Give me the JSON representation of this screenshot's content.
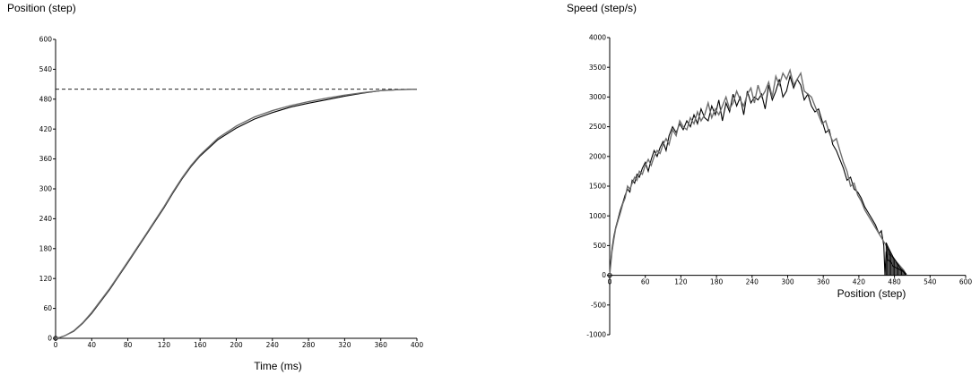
{
  "chart_data": [
    {
      "type": "line",
      "title": "",
      "ylabel": "Position (step)",
      "xlabel": "Time (ms)",
      "xlim": [
        0,
        400
      ],
      "ylim": [
        0,
        600
      ],
      "xticks": [
        "0",
        "40",
        "80",
        "120",
        "160",
        "200",
        "240",
        "280",
        "320",
        "360",
        "400"
      ],
      "yticks": [
        "0",
        "60",
        "120",
        "180",
        "240",
        "300",
        "360",
        "420",
        "480",
        "540",
        "600"
      ],
      "grid": false,
      "reference_line": {
        "y": 500,
        "style": "dashed",
        "x_range": [
          0,
          400
        ]
      },
      "series": [
        {
          "color": "#000000",
          "x": [
            0,
            5,
            10,
            20,
            30,
            40,
            60,
            80,
            100,
            120,
            130,
            140,
            150,
            160,
            180,
            200,
            220,
            240,
            260,
            280,
            300,
            320,
            340,
            360,
            380,
            400
          ],
          "y": [
            0,
            2,
            5,
            14,
            30,
            50,
            98,
            152,
            207,
            262,
            292,
            320,
            345,
            366,
            399,
            422,
            440,
            453,
            464,
            472,
            479,
            486,
            492,
            497,
            499,
            500
          ]
        },
        {
          "color": "#6e6e6e",
          "x": [
            0,
            5,
            10,
            20,
            30,
            40,
            60,
            80,
            100,
            120,
            130,
            140,
            150,
            160,
            180,
            200,
            220,
            240,
            260,
            280,
            300,
            320,
            340,
            360,
            380,
            400
          ],
          "y": [
            0,
            2,
            5,
            15,
            31,
            52,
            100,
            154,
            209,
            264,
            294,
            322,
            347,
            368,
            402,
            426,
            444,
            457,
            467,
            475,
            482,
            488,
            493,
            497,
            499,
            500
          ]
        }
      ]
    },
    {
      "type": "line",
      "title": "",
      "ylabel": "Speed (step/s)",
      "xlabel": "Position (step)",
      "xlim": [
        0,
        600
      ],
      "ylim": [
        -1000,
        4000
      ],
      "xticks": [
        "0",
        "60",
        "120",
        "180",
        "240",
        "300",
        "360",
        "420",
        "480",
        "540",
        "600"
      ],
      "yticks": [
        "-1000",
        "-500",
        "0",
        "500",
        "1000",
        "1500",
        "2000",
        "2500",
        "3000",
        "3500",
        "4000"
      ],
      "grid": false,
      "series": [
        {
          "color": "#000000",
          "x": [
            0,
            2,
            4,
            7,
            10,
            14,
            18,
            22,
            26,
            30,
            34,
            38,
            42,
            46,
            50,
            55,
            60,
            65,
            70,
            75,
            80,
            85,
            90,
            95,
            100,
            106,
            112,
            118,
            124,
            130,
            136,
            142,
            148,
            154,
            160,
            166,
            172,
            178,
            184,
            190,
            196,
            202,
            208,
            214,
            220,
            226,
            232,
            238,
            244,
            250,
            256,
            262,
            268,
            274,
            280,
            286,
            292,
            298,
            304,
            310,
            316,
            322,
            328,
            334,
            340,
            346,
            352,
            358,
            364,
            370,
            376,
            382,
            388,
            394,
            400,
            406,
            412,
            418,
            424,
            430,
            436,
            442,
            448,
            454,
            458,
            462,
            464,
            466,
            468,
            472,
            478,
            484,
            490,
            496,
            500
          ],
          "y": [
            0,
            250,
            450,
            650,
            800,
            950,
            1100,
            1220,
            1350,
            1450,
            1400,
            1600,
            1550,
            1700,
            1650,
            1800,
            1900,
            1750,
            1950,
            2100,
            2000,
            2150,
            2250,
            2100,
            2350,
            2500,
            2400,
            2550,
            2450,
            2600,
            2500,
            2700,
            2550,
            2800,
            2650,
            2600,
            2850,
            2700,
            2950,
            2600,
            2900,
            2750,
            3050,
            2850,
            3000,
            2700,
            3100,
            2900,
            3000,
            2950,
            3050,
            2800,
            3200,
            2950,
            3100,
            3300,
            3000,
            3100,
            3350,
            3150,
            3300,
            3200,
            2950,
            3050,
            2850,
            2750,
            2800,
            2600,
            2400,
            2450,
            2200,
            2100,
            1950,
            1800,
            1600,
            1650,
            1450,
            1400,
            1300,
            1150,
            1050,
            950,
            850,
            700,
            750,
            500,
            0,
            400,
            250,
            250,
            150,
            120,
            90,
            50,
            0
          ]
        },
        {
          "color": "#6e6e6e",
          "x": [
            0,
            2,
            4,
            7,
            10,
            14,
            18,
            22,
            26,
            30,
            34,
            38,
            42,
            46,
            50,
            55,
            60,
            65,
            70,
            75,
            80,
            85,
            90,
            95,
            100,
            106,
            112,
            118,
            124,
            130,
            136,
            142,
            148,
            154,
            160,
            166,
            172,
            178,
            184,
            190,
            196,
            202,
            208,
            214,
            220,
            226,
            232,
            238,
            244,
            250,
            256,
            262,
            268,
            274,
            280,
            286,
            292,
            298,
            304,
            310,
            316,
            322,
            328,
            334,
            340,
            346,
            352,
            358,
            364,
            370,
            376,
            382,
            388,
            394,
            400,
            406,
            412,
            418,
            424,
            430,
            436,
            442,
            448,
            454,
            460,
            466,
            472,
            478,
            484,
            490,
            496,
            500
          ],
          "y": [
            0,
            200,
            400,
            600,
            780,
            920,
            1050,
            1200,
            1300,
            1500,
            1450,
            1550,
            1650,
            1600,
            1750,
            1700,
            1850,
            1950,
            1850,
            2000,
            2100,
            2050,
            2200,
            2300,
            2200,
            2450,
            2350,
            2600,
            2500,
            2450,
            2650,
            2550,
            2750,
            2600,
            2700,
            2900,
            2650,
            2800,
            2700,
            2850,
            3000,
            2800,
            2900,
            3100,
            2950,
            2850,
            3050,
            3150,
            2900,
            3200,
            3000,
            3100,
            3250,
            3000,
            3350,
            3200,
            3400,
            3300,
            3450,
            3200,
            3300,
            3400,
            3100,
            3050,
            3000,
            2850,
            2700,
            2550,
            2600,
            2400,
            2250,
            2300,
            2100,
            1900,
            1750,
            1500,
            1550,
            1350,
            1250,
            1100,
            1000,
            900,
            800,
            700,
            600,
            500,
            350,
            300,
            220,
            150,
            80,
            0
          ]
        },
        {
          "color": "#000000",
          "x": [
            466,
            468,
            470,
            472,
            474,
            476,
            478,
            480,
            482,
            484,
            486,
            488,
            490,
            492,
            494,
            496,
            498,
            500
          ],
          "y": [
            550,
            500,
            460,
            420,
            380,
            340,
            300,
            270,
            240,
            210,
            180,
            150,
            120,
            100,
            80,
            60,
            40,
            20
          ]
        }
      ]
    }
  ]
}
